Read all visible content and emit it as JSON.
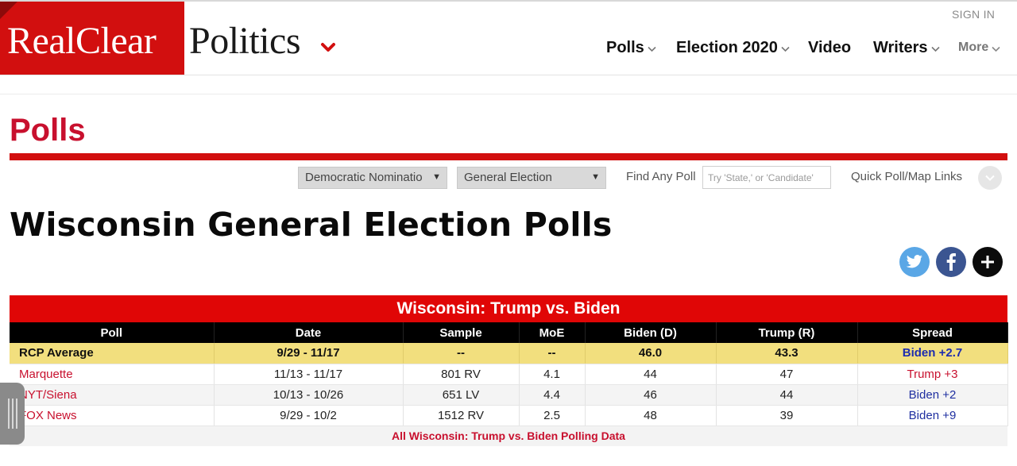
{
  "header": {
    "logo_left": "RealClear",
    "logo_right": "Politics",
    "sign_in": "SIGN IN",
    "nav": [
      {
        "label": "Polls",
        "has_chevron": true
      },
      {
        "label": "Election 2020",
        "has_chevron": true
      },
      {
        "label": "Video",
        "has_chevron": false
      },
      {
        "label": "Writers",
        "has_chevron": true
      },
      {
        "label": "More",
        "has_chevron": true
      }
    ]
  },
  "section": {
    "title": "Polls"
  },
  "filters": {
    "select1": "Democratic Nominatio",
    "select2": "General Election",
    "find_label": "Find Any Poll",
    "find_placeholder": "Try 'State,' or 'Candidate'",
    "quick_label": "Quick Poll/Map Links"
  },
  "page_title": "Wisconsin General Election Polls",
  "social": [
    "twitter-icon",
    "facebook-icon",
    "plus-icon"
  ],
  "table": {
    "title": "Wisconsin: Trump vs. Biden",
    "columns": [
      "Poll",
      "Date",
      "Sample",
      "MoE",
      "Biden (D)",
      "Trump (R)",
      "Spread"
    ],
    "average": {
      "poll": "RCP Average",
      "date": "9/29 - 11/17",
      "sample": "--",
      "moe": "--",
      "biden": "46.0",
      "trump": "43.3",
      "spread": "Biden +2.7"
    },
    "rows": [
      {
        "poll": "Marquette",
        "date": "11/13 - 11/17",
        "sample": "801 RV",
        "moe": "4.1",
        "biden": "44",
        "trump": "47",
        "spread": "Trump +3",
        "spread_party": "R"
      },
      {
        "poll": "NYT/Siena",
        "date": "10/13 - 10/26",
        "sample": "651 LV",
        "moe": "4.4",
        "biden": "46",
        "trump": "44",
        "spread": "Biden +2",
        "spread_party": "D"
      },
      {
        "poll": "FOX News",
        "date": "9/29 - 10/2",
        "sample": "1512 RV",
        "moe": "2.5",
        "biden": "48",
        "trump": "39",
        "spread": "Biden +9",
        "spread_party": "D"
      }
    ],
    "all_data_link": "All Wisconsin: Trump vs. Biden Polling Data"
  },
  "colors": {
    "brand_red": "#d20f0f",
    "poll_red": "#c8102e",
    "dem_blue": "#1f2fa0",
    "average_yellow": "#f2df7e"
  }
}
